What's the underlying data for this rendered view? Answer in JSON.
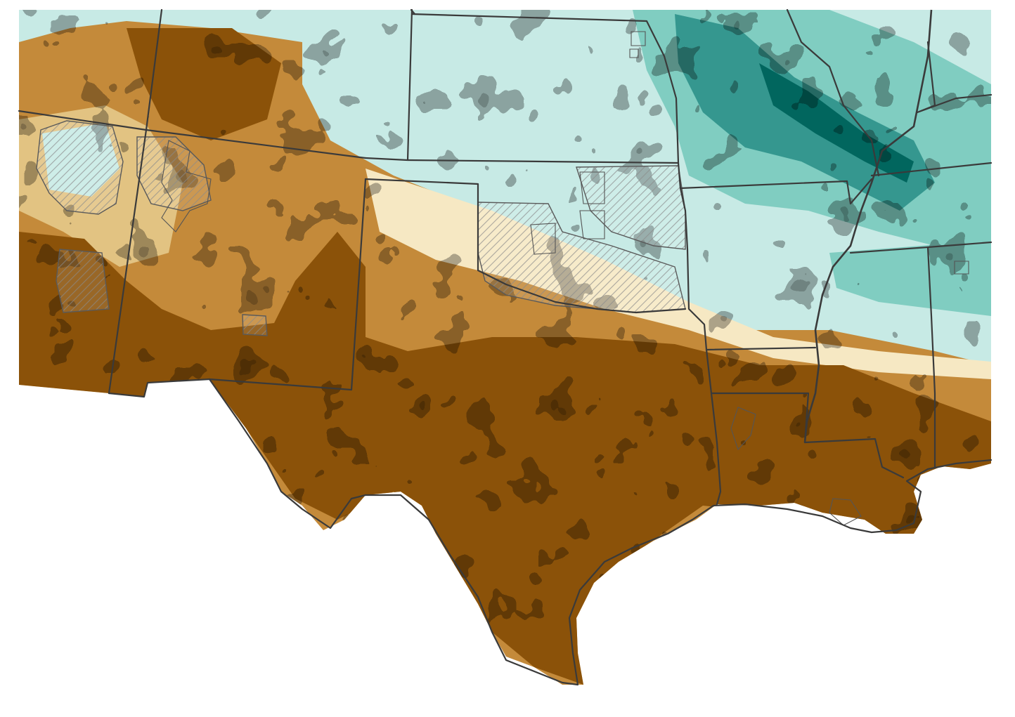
{
  "map": {
    "type": "precipitation-anomaly-raster",
    "palette": {
      "very_dry": "#8b5209",
      "dry": "#c48a3a",
      "slightly_dry": "#e2c382",
      "near_normal": "#f6e8c3",
      "slightly_wet": "#c7eae5",
      "wet": "#80cdc1",
      "very_wet": "#35978f",
      "extremely_wet": "#01665e",
      "ocean": "#ffffff",
      "boundaries": "#3a3a3a",
      "hatch": "#8a8a8a"
    },
    "layers": [
      "anomaly-raster",
      "state-boundaries",
      "county-hatch-overlays",
      "mississippi-river"
    ]
  }
}
